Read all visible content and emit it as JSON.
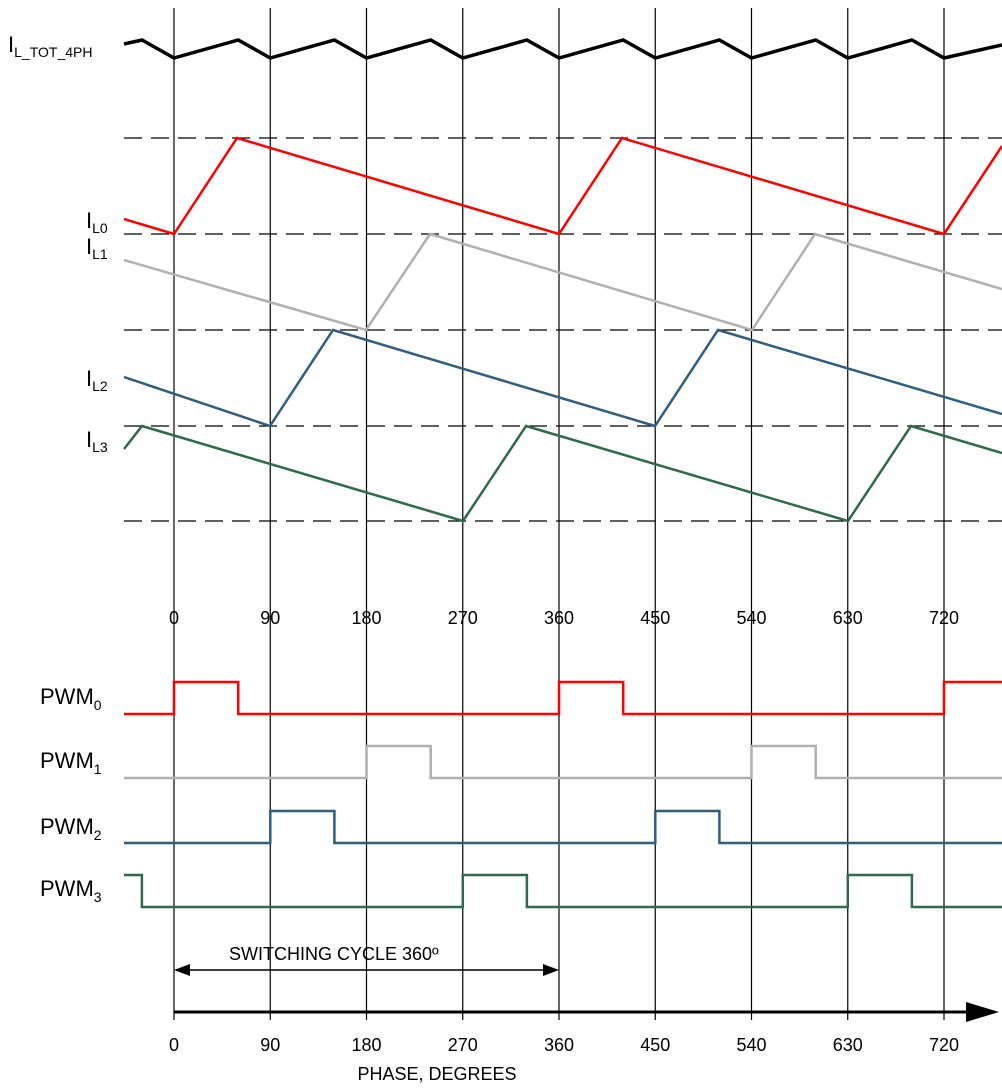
{
  "labels": {
    "i_tot": {
      "main": "I",
      "sub": "L_TOT_4PH"
    },
    "i_l0": {
      "main": "I",
      "sub": "L0"
    },
    "i_l1": {
      "main": "I",
      "sub": "L1"
    },
    "i_l2": {
      "main": "I",
      "sub": "L2"
    },
    "i_l3": {
      "main": "I",
      "sub": "L3"
    },
    "pwm0": {
      "main": "PWM",
      "sub": "0"
    },
    "pwm1": {
      "main": "PWM",
      "sub": "1"
    },
    "pwm2": {
      "main": "PWM",
      "sub": "2"
    },
    "pwm3": {
      "main": "PWM",
      "sub": "3"
    }
  },
  "switching_cycle_label": "SWITCHING CYCLE 360º",
  "x_axis_label": "PHASE, DEGREES",
  "phase_ticks_top": [
    "0",
    "90",
    "180",
    "270",
    "360",
    "450",
    "540",
    "630",
    "720"
  ],
  "phase_ticks_bottom": [
    "0",
    "90",
    "180",
    "270",
    "360",
    "450",
    "540",
    "630",
    "720"
  ],
  "colors": {
    "phase0": "#ff0000",
    "phase1": "#b0b0b0",
    "phase2": "#2f5f7f",
    "phase3": "#2e6b4a",
    "total": "#000000"
  }
}
